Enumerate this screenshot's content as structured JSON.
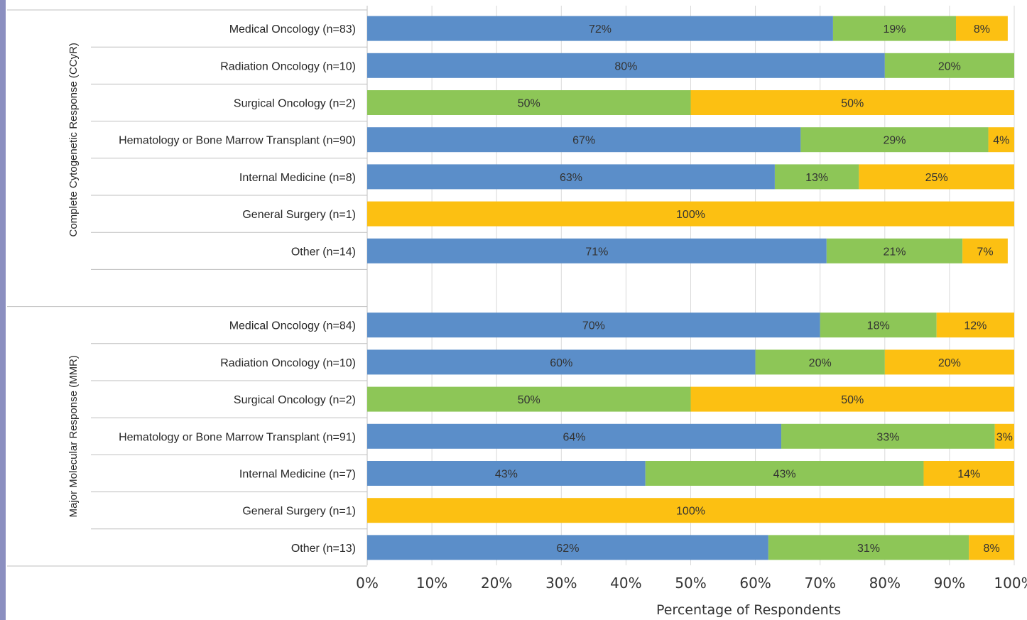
{
  "chart_data": {
    "type": "bar",
    "orientation": "horizontal",
    "stacked": true,
    "xlabel": "Percentage of Respondents",
    "xlim": [
      0,
      100
    ],
    "x_ticks": [
      "0%",
      "10%",
      "20%",
      "30%",
      "40%",
      "50%",
      "60%",
      "70%",
      "80%",
      "90%",
      "100%"
    ],
    "grid": "vertical",
    "colors": [
      "#5b8ec9",
      "#8dc657",
      "#fcc012"
    ],
    "groups": [
      {
        "name": "Complete Cytogenetic Response (CCyR)",
        "categories": [
          {
            "label": "Medical Oncology (n=83)",
            "values": [
              72,
              19,
              8
            ],
            "labels": [
              "72%",
              "19%",
              "8%"
            ]
          },
          {
            "label": "Radiation Oncology (n=10)",
            "values": [
              80,
              20,
              0
            ],
            "labels": [
              "80%",
              "20%",
              ""
            ]
          },
          {
            "label": "Surgical Oncology (n=2)",
            "values": [
              0,
              50,
              50
            ],
            "labels": [
              "",
              "50%",
              "50%"
            ]
          },
          {
            "label": "Hematology or Bone Marrow Transplant (n=90)",
            "values": [
              67,
              29,
              4
            ],
            "labels": [
              "67%",
              "29%",
              "4%"
            ]
          },
          {
            "label": "Internal Medicine (n=8)",
            "values": [
              63,
              13,
              25
            ],
            "labels": [
              "63%",
              "13%",
              "25%"
            ]
          },
          {
            "label": "General Surgery (n=1)",
            "values": [
              0,
              0,
              100
            ],
            "labels": [
              "",
              "",
              "100%"
            ]
          },
          {
            "label": "Other (n=14)",
            "values": [
              71,
              21,
              7
            ],
            "labels": [
              "71%",
              "21%",
              "7%"
            ]
          }
        ]
      },
      {
        "name": "Major Molecular Response (MMR)",
        "categories": [
          {
            "label": "Medical Oncology (n=84)",
            "values": [
              70,
              18,
              12
            ],
            "labels": [
              "70%",
              "18%",
              "12%"
            ]
          },
          {
            "label": "Radiation Oncology (n=10)",
            "values": [
              60,
              20,
              20
            ],
            "labels": [
              "60%",
              "20%",
              "20%"
            ]
          },
          {
            "label": "Surgical Oncology (n=2)",
            "values": [
              0,
              50,
              50
            ],
            "labels": [
              "",
              "50%",
              "50%"
            ]
          },
          {
            "label": "Hematology or Bone Marrow Transplant (n=91)",
            "values": [
              64,
              33,
              3
            ],
            "labels": [
              "64%",
              "33%",
              "3%"
            ]
          },
          {
            "label": "Internal Medicine (n=7)",
            "values": [
              43,
              43,
              14
            ],
            "labels": [
              "43%",
              "43%",
              "14%"
            ]
          },
          {
            "label": "General Surgery (n=1)",
            "values": [
              0,
              0,
              100
            ],
            "labels": [
              "",
              "",
              "100%"
            ]
          },
          {
            "label": "Other (n=13)",
            "values": [
              62,
              31,
              8
            ],
            "labels": [
              "62%",
              "31%",
              "8%"
            ]
          }
        ]
      }
    ]
  }
}
